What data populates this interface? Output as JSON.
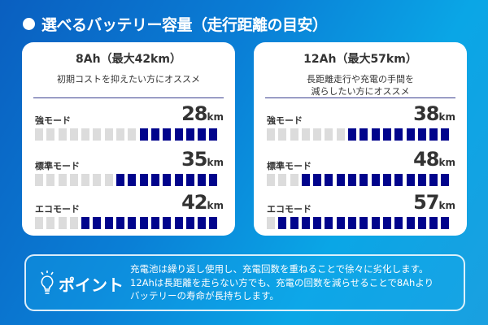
{
  "title": "選べるバッテリー容量（走行距離の目安）",
  "unit": "km",
  "total_segments": 16,
  "cards": [
    {
      "title": "8Ah（最大42km）",
      "subtitle_lines": [
        "初期コストを抑えたい方にオススメ",
        ""
      ],
      "modes": [
        {
          "label": "強モード",
          "value": "28",
          "filled_segments": 7
        },
        {
          "label": "標準モード",
          "value": "35",
          "filled_segments": 9
        },
        {
          "label": "エコモード",
          "value": "42",
          "filled_segments": 12
        }
      ]
    },
    {
      "title": "12Ah（最大57km）",
      "subtitle_lines": [
        "長距離走行や充電の手間を",
        "減らしたい方にオススメ"
      ],
      "modes": [
        {
          "label": "強モード",
          "value": "38",
          "filled_segments": 9
        },
        {
          "label": "標準モード",
          "value": "48",
          "filled_segments": 13
        },
        {
          "label": "エコモード",
          "value": "57",
          "filled_segments": 15
        }
      ]
    }
  ],
  "point": {
    "icon": "lightbulb-icon",
    "label": "ポイント",
    "lines": [
      "充電池は繰り返し使用し、充電回数を重ねることで徐々に劣化します。",
      "12Ahは長距離を走らない方でも、充電の回数を減らせることで8Ahより",
      "バッテリーの寿命が長持ちします。"
    ]
  },
  "colors": {
    "filled": "#01048c",
    "empty": "#dcdcdc",
    "background": "#0a7fd6"
  }
}
